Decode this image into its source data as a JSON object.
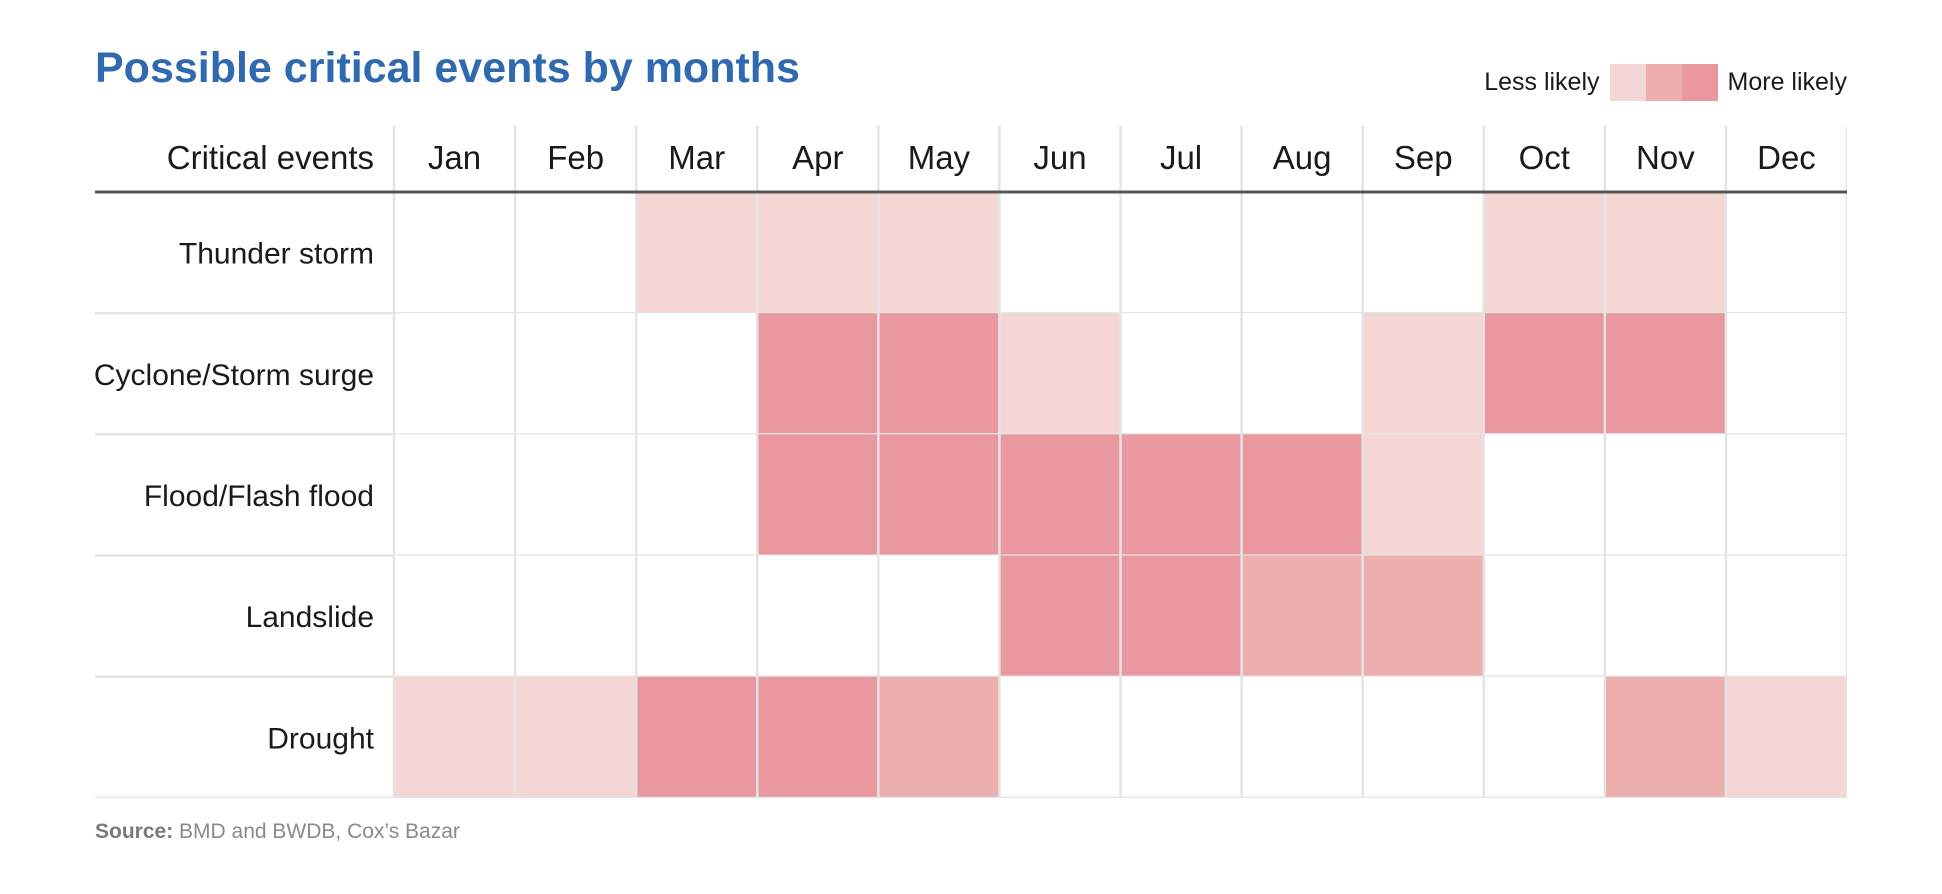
{
  "chart_data": {
    "type": "heatmap",
    "title": "Possible critical events by months",
    "row_header": "Critical events",
    "columns": [
      "Jan",
      "Feb",
      "Mar",
      "Apr",
      "May",
      "Jun",
      "Jul",
      "Aug",
      "Sep",
      "Oct",
      "Nov",
      "Dec"
    ],
    "rows": [
      "Thunder storm",
      "Cyclone/Storm surge",
      "Flood/Flash flood",
      "Landslide",
      "Drought"
    ],
    "values": [
      [
        0,
        0,
        1,
        1,
        1,
        0,
        0,
        0,
        0,
        1,
        1,
        0
      ],
      [
        0,
        0,
        0,
        3,
        3,
        1,
        0,
        0,
        1,
        3,
        3,
        0
      ],
      [
        0,
        0,
        0,
        3,
        3,
        3,
        3,
        3,
        1,
        0,
        0,
        0
      ],
      [
        0,
        0,
        0,
        0,
        0,
        3,
        3,
        2,
        2,
        0,
        0,
        0
      ],
      [
        1,
        1,
        3,
        3,
        2,
        0,
        0,
        0,
        0,
        0,
        2,
        1
      ]
    ],
    "scale": {
      "low_label": "Less likely",
      "high_label": "More likely",
      "colors": [
        "#ffffff",
        "#f4d6d5",
        "#edaeae",
        "#ea98a0"
      ]
    }
  },
  "source": {
    "label": "Source:",
    "text": "BMD and BWDB, Cox’s Bazar"
  }
}
